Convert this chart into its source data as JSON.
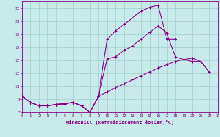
{
  "xlabel": "Windchill (Refroidissement éolien,°C)",
  "bg_color": "#c8eaea",
  "line_color": "#880088",
  "grid_color": "#a0cccc",
  "xlim": [
    0,
    23
  ],
  "ylim": [
    7,
    24
  ],
  "xticks": [
    0,
    1,
    2,
    3,
    4,
    5,
    6,
    7,
    8,
    9,
    10,
    11,
    12,
    13,
    14,
    15,
    16,
    17,
    18,
    19,
    20,
    21,
    22,
    23
  ],
  "yticks": [
    7,
    9,
    11,
    13,
    15,
    17,
    19,
    21,
    23
  ],
  "line1_x": [
    0,
    1,
    2,
    3,
    4,
    5,
    6,
    7,
    8,
    9,
    10,
    11,
    12,
    13,
    14,
    15,
    16,
    17,
    18
  ],
  "line1_y": [
    9.5,
    8.5,
    8.0,
    8.0,
    8.2,
    8.3,
    8.5,
    8.0,
    7.0,
    9.5,
    18.2,
    19.5,
    20.5,
    21.5,
    22.5,
    23.1,
    23.4,
    18.2,
    18.2
  ],
  "line2_x": [
    0,
    1,
    2,
    3,
    4,
    5,
    6,
    7,
    8,
    9,
    10,
    11,
    12,
    13,
    14,
    15,
    16,
    17,
    18,
    19,
    20,
    21,
    22
  ],
  "line2_y": [
    9.5,
    8.5,
    8.0,
    8.0,
    8.2,
    8.3,
    8.5,
    8.0,
    7.0,
    9.5,
    15.2,
    15.5,
    16.5,
    17.2,
    18.2,
    19.3,
    20.2,
    19.2,
    15.5,
    15.1,
    14.8,
    14.8,
    13.2
  ],
  "line3_x": [
    0,
    1,
    2,
    3,
    4,
    5,
    6,
    7,
    8,
    9,
    10,
    11,
    12,
    13,
    14,
    15,
    16,
    17,
    18,
    19,
    20,
    21,
    22
  ],
  "line3_y": [
    9.5,
    8.5,
    8.0,
    8.0,
    8.2,
    8.3,
    8.5,
    8.0,
    7.0,
    9.5,
    10.1,
    10.8,
    11.4,
    12.0,
    12.6,
    13.2,
    13.8,
    14.3,
    14.8,
    15.1,
    15.3,
    14.8,
    13.2
  ]
}
